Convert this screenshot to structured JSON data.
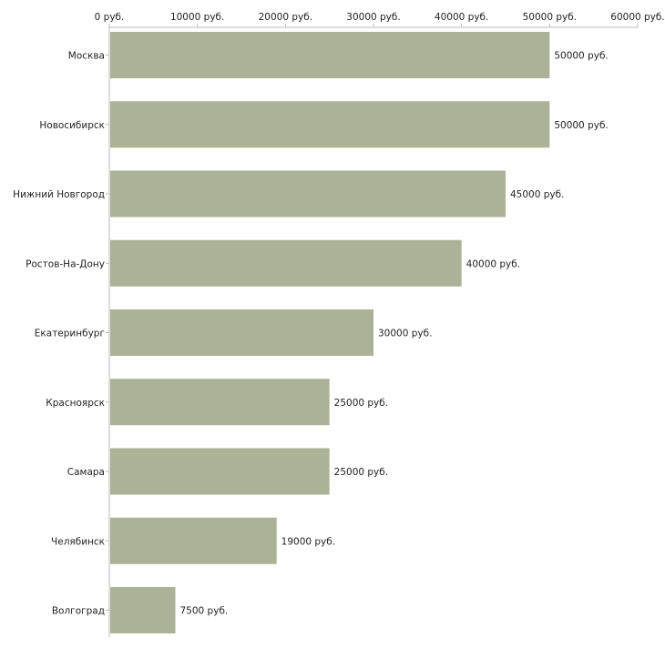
{
  "chart_data": {
    "type": "bar",
    "orientation": "horizontal",
    "title": "",
    "xlabel": "",
    "ylabel": "",
    "xlim": [
      0,
      60000
    ],
    "ticks": [
      0,
      10000,
      20000,
      30000,
      40000,
      50000,
      60000
    ],
    "tick_labels": [
      "0 руб.",
      "10000 руб.",
      "20000 руб.",
      "30000 руб.",
      "40000 руб.",
      "50000 руб.",
      "60000 руб."
    ],
    "categories": [
      "Москва",
      "Новосибирск",
      "Нижний Новгород",
      "Ростов-На-Дону",
      "Екатеринбург",
      "Красноярск",
      "Самара",
      "Челябинск",
      "Волгоград"
    ],
    "values": [
      50000,
      50000,
      45000,
      40000,
      30000,
      25000,
      25000,
      19000,
      7500
    ],
    "value_labels": [
      "50000 руб.",
      "50000 руб.",
      "45000 руб.",
      "40000 руб.",
      "30000 руб.",
      "25000 руб.",
      "25000 руб.",
      "19000 руб.",
      "7500 руб."
    ],
    "grid": false,
    "axis_position": "top",
    "colors": {
      "bar": "#acb297",
      "axis": "#bbbbbb",
      "text": "#222222"
    }
  }
}
